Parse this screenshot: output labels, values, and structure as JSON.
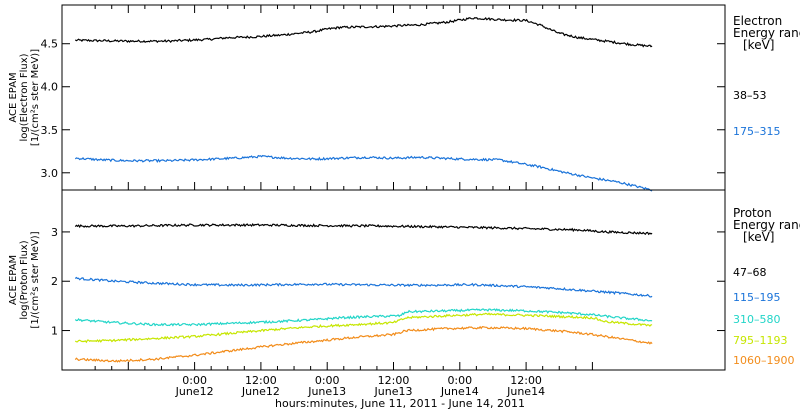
{
  "chart_data": [
    {
      "type": "line",
      "panel": "electron",
      "ylabel_lines": [
        "ACE EPAM",
        "log(Electron Flux)",
        "[1/(cm²s ster MeV)]"
      ],
      "ylim": [
        2.8,
        4.95
      ],
      "yticks": [
        3.0,
        3.5,
        4.0,
        4.5
      ],
      "ytick_labels": [
        "3.0",
        "3.5",
        "4.0",
        "4.5"
      ],
      "legend_title": [
        "Electron",
        "Energy ranges",
        "[keV]"
      ],
      "series": [
        {
          "name": "38–53",
          "color": "#000000",
          "points": [
            [
              -0.9,
              4.54
            ],
            [
              -0.5,
              4.53
            ],
            [
              -0.2,
              4.53
            ],
            [
              0.1,
              4.55
            ],
            [
              0.25,
              4.57
            ],
            [
              0.45,
              4.58
            ],
            [
              0.65,
              4.6
            ],
            [
              0.9,
              4.64
            ],
            [
              1.0,
              4.67
            ],
            [
              1.1,
              4.69
            ],
            [
              1.4,
              4.7
            ],
            [
              1.7,
              4.72
            ],
            [
              1.9,
              4.75
            ],
            [
              2.1,
              4.8
            ],
            [
              2.3,
              4.78
            ],
            [
              2.5,
              4.77
            ],
            [
              2.6,
              4.72
            ],
            [
              2.75,
              4.62
            ],
            [
              2.9,
              4.57
            ],
            [
              3.1,
              4.53
            ],
            [
              3.3,
              4.49
            ],
            [
              3.45,
              4.47
            ]
          ]
        },
        {
          "name": "175–315",
          "color": "#1a73d9",
          "points": [
            [
              -0.9,
              3.17
            ],
            [
              -0.7,
              3.15
            ],
            [
              -0.5,
              3.14
            ],
            [
              -0.2,
              3.14
            ],
            [
              0.0,
              3.15
            ],
            [
              0.3,
              3.17
            ],
            [
              0.5,
              3.19
            ],
            [
              0.7,
              3.17
            ],
            [
              0.9,
              3.16
            ],
            [
              1.1,
              3.17
            ],
            [
              1.3,
              3.18
            ],
            [
              1.5,
              3.17
            ],
            [
              1.7,
              3.18
            ],
            [
              2.0,
              3.16
            ],
            [
              2.3,
              3.15
            ],
            [
              2.6,
              3.07
            ],
            [
              2.8,
              3.0
            ],
            [
              3.0,
              2.94
            ],
            [
              3.2,
              2.89
            ],
            [
              3.45,
              2.8
            ]
          ]
        }
      ]
    },
    {
      "type": "line",
      "panel": "proton",
      "ylabel_lines": [
        "ACE EPAM",
        "log(Proton Flux)",
        "[1/(cm²s ster MeV)]"
      ],
      "ylim": [
        0.2,
        3.85
      ],
      "yticks": [
        1,
        2,
        3
      ],
      "ytick_labels": [
        "1",
        "2",
        "3"
      ],
      "legend_title": [
        "Proton",
        "Energy ranges",
        "[keV]"
      ],
      "series": [
        {
          "name": "47–68",
          "color": "#000000",
          "points": [
            [
              -0.9,
              3.12
            ],
            [
              -0.5,
              3.12
            ],
            [
              0.0,
              3.14
            ],
            [
              0.5,
              3.14
            ],
            [
              0.9,
              3.13
            ],
            [
              1.4,
              3.12
            ],
            [
              1.9,
              3.1
            ],
            [
              2.3,
              3.08
            ],
            [
              2.6,
              3.06
            ],
            [
              2.9,
              3.04
            ],
            [
              3.1,
              3.0
            ],
            [
              3.45,
              2.97
            ]
          ]
        },
        {
          "name": "115–195",
          "color": "#1a73d9",
          "points": [
            [
              -0.9,
              2.06
            ],
            [
              -0.6,
              2.0
            ],
            [
              -0.3,
              1.96
            ],
            [
              0.0,
              1.93
            ],
            [
              0.3,
              1.92
            ],
            [
              0.6,
              1.93
            ],
            [
              0.9,
              1.94
            ],
            [
              1.2,
              1.93
            ],
            [
              1.5,
              1.92
            ],
            [
              1.8,
              1.92
            ],
            [
              2.1,
              1.93
            ],
            [
              2.4,
              1.9
            ],
            [
              2.7,
              1.86
            ],
            [
              3.0,
              1.8
            ],
            [
              3.2,
              1.76
            ],
            [
              3.45,
              1.7
            ]
          ]
        },
        {
          "name": "310–580",
          "color": "#22d5c8",
          "points": [
            [
              -0.9,
              1.22
            ],
            [
              -0.6,
              1.16
            ],
            [
              -0.3,
              1.12
            ],
            [
              0.0,
              1.12
            ],
            [
              0.3,
              1.15
            ],
            [
              0.6,
              1.18
            ],
            [
              0.9,
              1.22
            ],
            [
              1.1,
              1.26
            ],
            [
              1.3,
              1.28
            ],
            [
              1.55,
              1.3
            ],
            [
              1.6,
              1.38
            ],
            [
              1.9,
              1.4
            ],
            [
              2.2,
              1.42
            ],
            [
              2.5,
              1.4
            ],
            [
              2.8,
              1.36
            ],
            [
              3.0,
              1.32
            ],
            [
              3.2,
              1.26
            ],
            [
              3.45,
              1.2
            ]
          ]
        },
        {
          "name": "795–1193",
          "color": "#c6e600",
          "points": [
            [
              -0.9,
              0.78
            ],
            [
              -0.6,
              0.8
            ],
            [
              -0.3,
              0.84
            ],
            [
              0.0,
              0.88
            ],
            [
              0.3,
              0.95
            ],
            [
              0.6,
              1.02
            ],
            [
              0.9,
              1.08
            ],
            [
              1.2,
              1.12
            ],
            [
              1.5,
              1.16
            ],
            [
              1.6,
              1.26
            ],
            [
              1.9,
              1.3
            ],
            [
              2.2,
              1.33
            ],
            [
              2.5,
              1.31
            ],
            [
              2.8,
              1.28
            ],
            [
              3.0,
              1.26
            ],
            [
              3.1,
              1.18
            ],
            [
              3.45,
              1.1
            ]
          ]
        },
        {
          "name": "1060–1900",
          "color": "#f28c1a",
          "points": [
            [
              -0.9,
              0.42
            ],
            [
              -0.6,
              0.38
            ],
            [
              -0.3,
              0.42
            ],
            [
              0.0,
              0.5
            ],
            [
              0.3,
              0.6
            ],
            [
              0.6,
              0.7
            ],
            [
              0.9,
              0.78
            ],
            [
              1.2,
              0.86
            ],
            [
              1.5,
              0.92
            ],
            [
              1.6,
              1.0
            ],
            [
              1.9,
              1.04
            ],
            [
              2.2,
              1.06
            ],
            [
              2.5,
              1.04
            ],
            [
              2.8,
              0.98
            ],
            [
              3.0,
              0.92
            ],
            [
              3.2,
              0.84
            ],
            [
              3.45,
              0.74
            ]
          ]
        }
      ]
    }
  ],
  "x_axis": {
    "unit": "days from 0:00 June 12, 2011",
    "xlim": [
      -1.0,
      4.0
    ],
    "major_ticks": [
      {
        "x": 0.0,
        "time": "0:00",
        "date": "June12"
      },
      {
        "x": 0.5,
        "time": "12:00",
        "date": "June12"
      },
      {
        "x": 1.0,
        "time": "0:00",
        "date": "June13"
      },
      {
        "x": 1.5,
        "time": "12:00",
        "date": "June13"
      },
      {
        "x": 2.0,
        "time": "0:00",
        "date": "June14"
      },
      {
        "x": 2.5,
        "time": "12:00",
        "date": "June14"
      }
    ],
    "xlabel": "hours:minutes, June 11, 2011 - June 14, 2011"
  }
}
